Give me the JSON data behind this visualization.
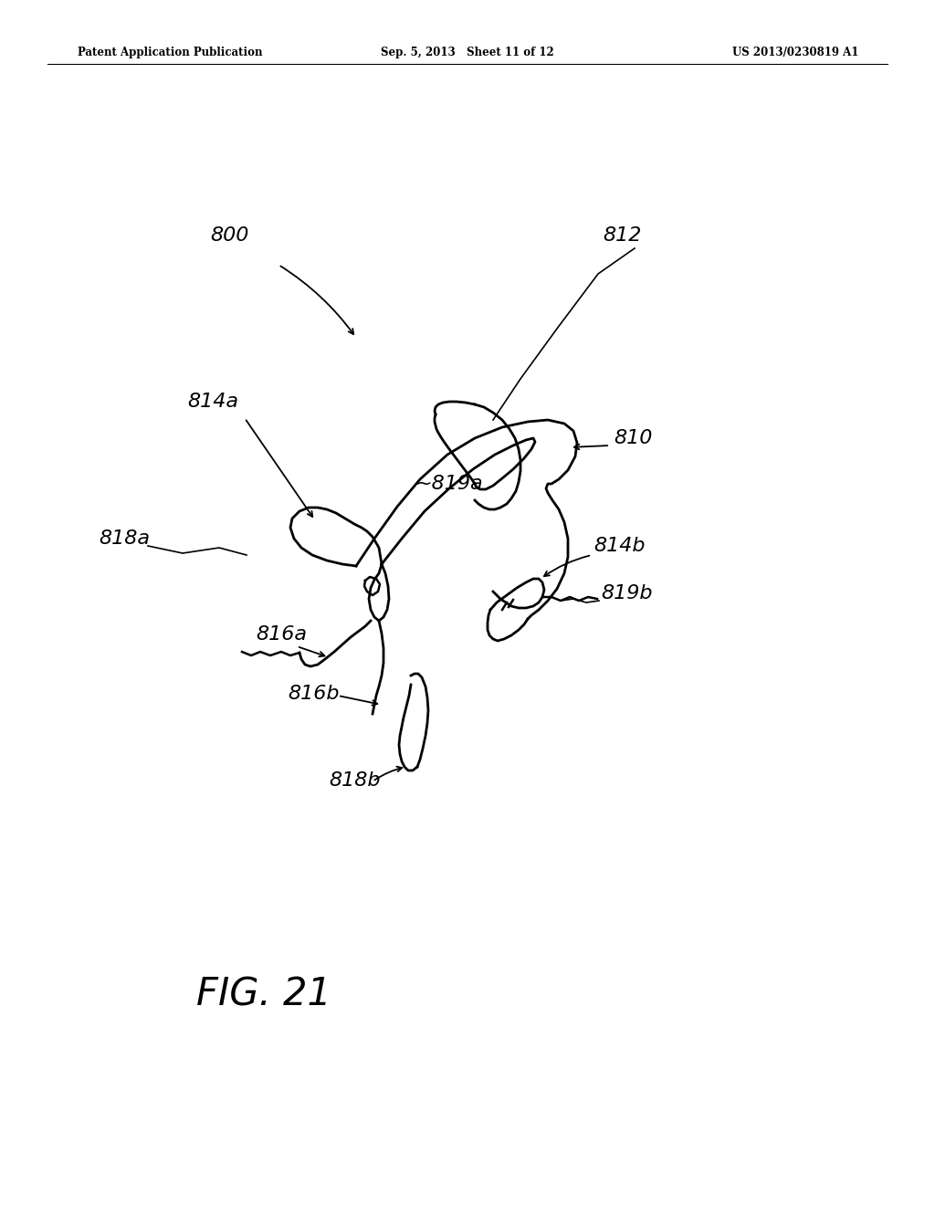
{
  "background_color": "#ffffff",
  "header_left": "Patent Application Publication",
  "header_center": "Sep. 5, 2013   Sheet 11 of 12",
  "header_right": "US 2013/0230819 A1",
  "fig_label": "FIG. 21",
  "page_width": 10.24,
  "page_height": 13.2
}
